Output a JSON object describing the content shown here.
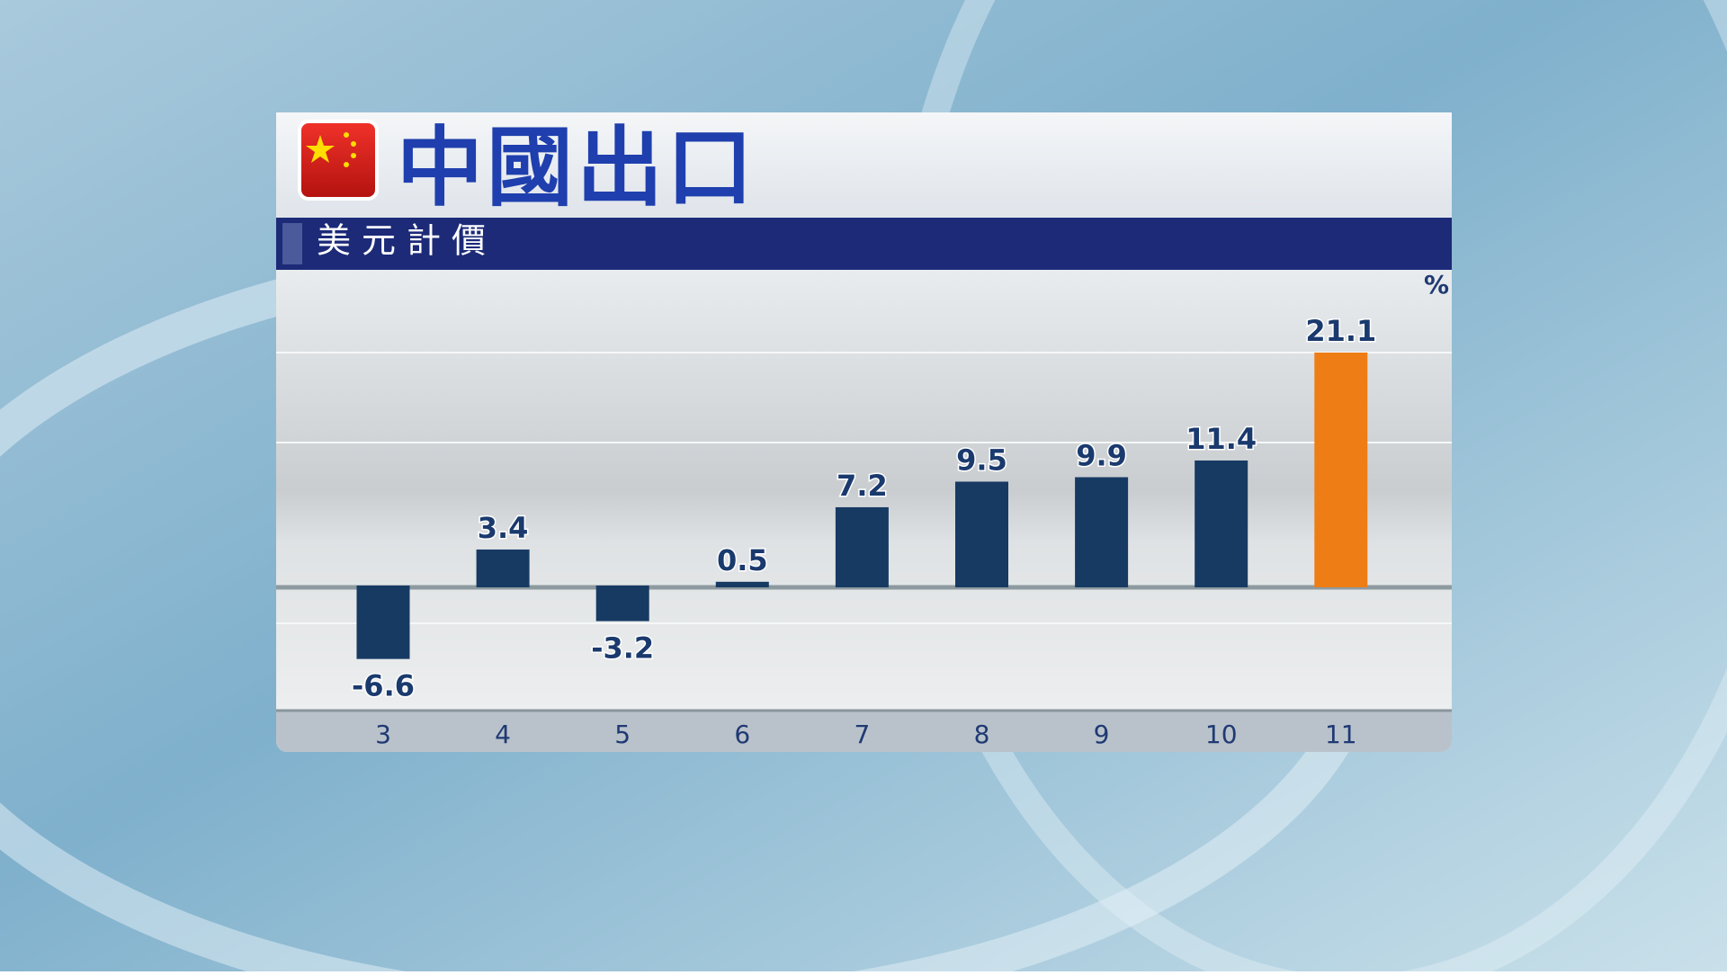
{
  "chart_data": {
    "type": "bar",
    "title": "中國出口",
    "subtitle": "美元計價",
    "unit_label": "%",
    "categories": [
      "3",
      "4",
      "5",
      "6",
      "7",
      "8",
      "9",
      "10",
      "11"
    ],
    "values": [
      -6.6,
      3.4,
      -3.2,
      0.5,
      7.2,
      9.5,
      9.9,
      11.4,
      21.1
    ],
    "colors": [
      "#173a63",
      "#173a63",
      "#173a63",
      "#173a63",
      "#173a63",
      "#173a63",
      "#173a63",
      "#173a63",
      "#ee7d16"
    ]
  }
}
